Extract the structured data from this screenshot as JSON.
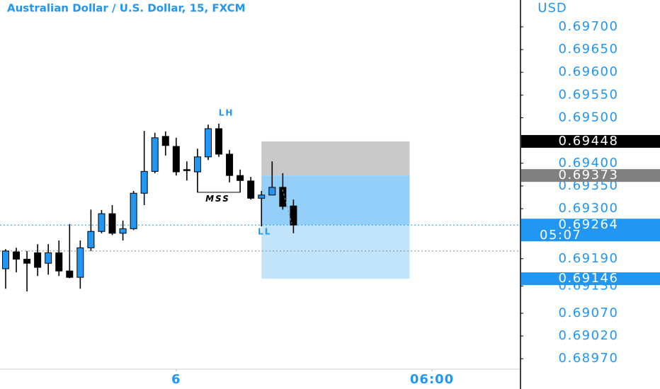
{
  "chart_data": {
    "type": "candlestick",
    "title": "Australian Dollar / U.S. Dollar, 15, FXCM",
    "currency": "USD",
    "up_color": "#2196f3",
    "down_color": "#000000",
    "xlim": [
      -0.53,
      48.3
    ],
    "xticks": [
      {
        "value": 16,
        "label": "6"
      },
      {
        "value": 40,
        "label": "06:00"
      }
    ],
    "ylim": [
      0.68947,
      0.69759
    ],
    "yticks": [
      {
        "value": 0.697,
        "label": "0.69700"
      },
      {
        "value": 0.6965,
        "label": "0.69650"
      },
      {
        "value": 0.696,
        "label": "0.69600"
      },
      {
        "value": 0.6955,
        "label": "0.69550"
      },
      {
        "value": 0.695,
        "label": "0.69500"
      },
      {
        "value": 0.694,
        "label": "0.69400"
      },
      {
        "value": 0.6935,
        "label": "0.69350"
      },
      {
        "value": 0.693,
        "label": "0.69300"
      },
      {
        "value": 0.6919,
        "label": "0.69190"
      },
      {
        "value": 0.6913,
        "label": "0.69130"
      },
      {
        "value": 0.6907,
        "label": "0.69070"
      },
      {
        "value": 0.6902,
        "label": "0.69020"
      },
      {
        "value": 0.6897,
        "label": "0.68970"
      }
    ],
    "open": [
      0.69168,
      0.69205,
      0.69189,
      0.69203,
      0.6918,
      0.69203,
      0.69163,
      0.69149,
      0.69214,
      0.6925,
      0.69289,
      0.69246,
      0.69256,
      0.69334,
      0.69382,
      0.69459,
      0.69437,
      0.69386,
      0.69381,
      0.69414,
      0.69476,
      0.6942,
      0.69373,
      0.69361,
      0.69323,
      0.6933,
      0.69347,
      0.69306
    ],
    "high": [
      0.69211,
      0.69214,
      0.69207,
      0.69222,
      0.69222,
      0.6923,
      0.69266,
      0.6923,
      0.69298,
      0.69297,
      0.69308,
      0.69274,
      0.69339,
      0.69471,
      0.69467,
      0.6947,
      0.69456,
      0.69404,
      0.69432,
      0.69485,
      0.69487,
      0.69429,
      0.69386,
      0.6937,
      0.69339,
      0.69404,
      0.69378,
      0.6932
    ],
    "low": [
      0.69124,
      0.6916,
      0.69118,
      0.69152,
      0.69155,
      0.69152,
      0.69147,
      0.69124,
      0.69207,
      0.69246,
      0.69242,
      0.6923,
      0.69253,
      0.69308,
      0.69378,
      0.69417,
      0.69373,
      0.69362,
      0.69336,
      0.69407,
      0.69414,
      0.69358,
      0.69336,
      0.6932,
      0.69261,
      0.6933,
      0.69298,
      0.69246
    ],
    "close": [
      0.69207,
      0.69189,
      0.6918,
      0.69171,
      0.69203,
      0.69163,
      0.69149,
      0.69214,
      0.6925,
      0.69289,
      0.69246,
      0.69256,
      0.69334,
      0.69382,
      0.69456,
      0.69439,
      0.69381,
      0.69384,
      0.69414,
      0.69476,
      0.6942,
      0.69373,
      0.69362,
      0.69323,
      0.6933,
      0.69347,
      0.69305,
      0.69264
    ],
    "zones": [
      {
        "x": [
          24,
          37.9
        ],
        "y": [
          0.69373,
          0.69448
        ],
        "color": "#c9c9c9"
      },
      {
        "x": [
          24,
          37.9
        ],
        "y": [
          0.69264,
          0.69373
        ],
        "color": "#93cff9"
      },
      {
        "x": [
          24,
          37.9
        ],
        "y": [
          0.69146,
          0.69264
        ],
        "color": "#c2e4fb"
      }
    ],
    "reference_lines": [
      {
        "value": 0.69264,
        "color": "#2196f3"
      },
      {
        "value": 0.69207,
        "color": "#888888"
      }
    ],
    "price_labels": [
      {
        "value": 0.69448,
        "label": "0.69448",
        "color": "#000000"
      },
      {
        "value": 0.69373,
        "label": "0.69373",
        "color": "#808080"
      },
      {
        "value": 0.69264,
        "label": "0.69264",
        "countdown": "05:07",
        "color": "#2196f3"
      },
      {
        "value": 0.69146,
        "label": "0.69146",
        "color": "#2196f3"
      }
    ],
    "annotations": [
      {
        "text": "LH",
        "x": 20.7,
        "y": 0.6951,
        "color": "#2196f3"
      },
      {
        "text": "MSS",
        "x": 19.9,
        "y": 0.69321,
        "color": "#000000"
      },
      {
        "text": "LL",
        "x": 24.3,
        "y": 0.69249,
        "color": "#2196f3"
      }
    ],
    "mss_line": {
      "x": [
        18,
        22
      ],
      "y": 0.69336
    }
  }
}
